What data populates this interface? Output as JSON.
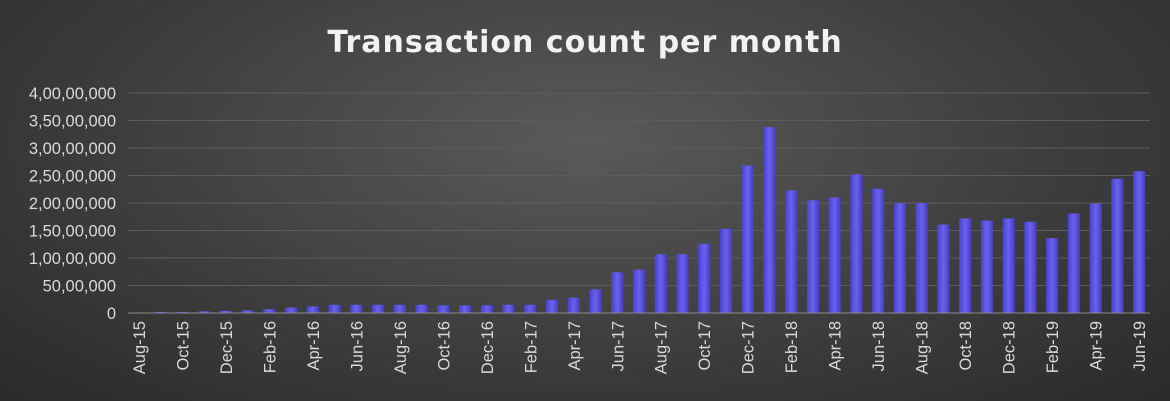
{
  "chart_data": {
    "type": "bar",
    "title": "Transaction count per month",
    "xlabel": "",
    "ylabel": "",
    "ylim": [
      0,
      40000000
    ],
    "yticks": [
      0,
      5000000,
      10000000,
      15000000,
      20000000,
      25000000,
      30000000,
      35000000,
      40000000
    ],
    "ytick_labels": [
      "0",
      "50,00,000",
      "1,00,00,000",
      "1,50,00,000",
      "2,00,00,000",
      "2,50,00,000",
      "3,00,00,000",
      "3,50,00,000",
      "4,00,00,000"
    ],
    "categories": [
      "Aug-15",
      "Sep-15",
      "Oct-15",
      "Nov-15",
      "Dec-15",
      "Jan-16",
      "Feb-16",
      "Mar-16",
      "Apr-16",
      "May-16",
      "Jun-16",
      "Jul-16",
      "Aug-16",
      "Sep-16",
      "Oct-16",
      "Nov-16",
      "Dec-16",
      "Jan-17",
      "Feb-17",
      "Mar-17",
      "Apr-17",
      "May-17",
      "Jun-17",
      "Jul-17",
      "Aug-17",
      "Sep-17",
      "Oct-17",
      "Nov-17",
      "Dec-17",
      "Jan-18",
      "Feb-18",
      "Mar-18",
      "Apr-18",
      "May-18",
      "Jun-18",
      "Jul-18",
      "Aug-18",
      "Sep-18",
      "Oct-18",
      "Nov-18",
      "Dec-18",
      "Jan-19",
      "Feb-19",
      "Mar-19",
      "Apr-19",
      "May-19",
      "Jun-19"
    ],
    "xtick_labels": [
      "Aug-15",
      "",
      "Oct-15",
      "",
      "Dec-15",
      "",
      "Feb-16",
      "",
      "Apr-16",
      "",
      "Jun-16",
      "",
      "Aug-16",
      "",
      "Oct-16",
      "",
      "Dec-16",
      "",
      "Feb-17",
      "",
      "Apr-17",
      "",
      "Jun-17",
      "",
      "Aug-17",
      "",
      "Oct-17",
      "",
      "Dec-17",
      "",
      "Feb-18",
      "",
      "Apr-18",
      "",
      "Jun-18",
      "",
      "Aug-18",
      "",
      "Oct-18",
      "",
      "Dec-18",
      "",
      "Feb-19",
      "",
      "Apr-19",
      "",
      "Jun-19"
    ],
    "values": [
      100000,
      200000,
      200000,
      300000,
      400000,
      500000,
      700000,
      1000000,
      1200000,
      1500000,
      1500000,
      1500000,
      1500000,
      1500000,
      1400000,
      1400000,
      1400000,
      1500000,
      1500000,
      2400000,
      2800000,
      4300000,
      7400000,
      7900000,
      10700000,
      10700000,
      12600000,
      15300000,
      26800000,
      33800000,
      22300000,
      20500000,
      21000000,
      25200000,
      22600000,
      20000000,
      20000000,
      16100000,
      17200000,
      16800000,
      17200000,
      16600000,
      13600000,
      18100000,
      19900000,
      24400000,
      25800000
    ],
    "bar_color": "#5148d6",
    "grid": true,
    "legend": "none"
  }
}
